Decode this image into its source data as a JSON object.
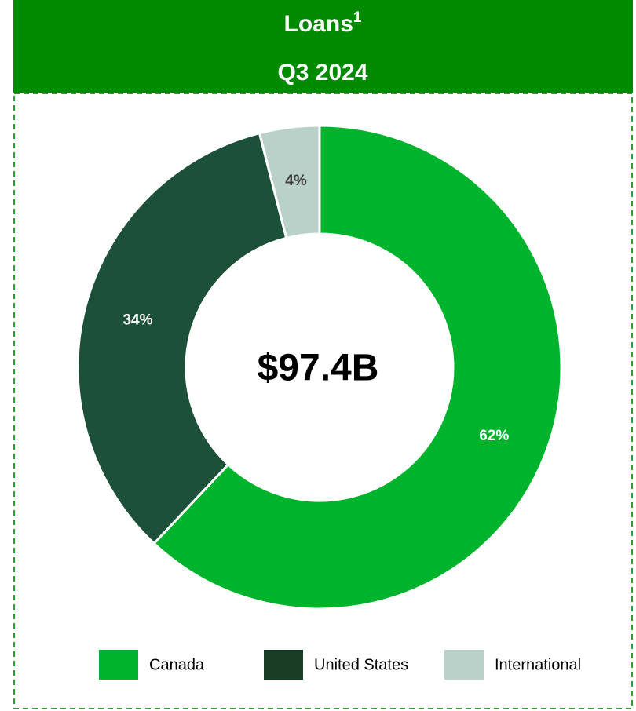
{
  "chart_data": {
    "type": "donut",
    "title": "Loans",
    "title_footnote": "1",
    "subtitle": "Q3 2024",
    "center_label": "$97.4B",
    "categories": [
      "Canada",
      "United States",
      "International"
    ],
    "values": [
      62,
      34,
      4
    ],
    "value_labels": [
      "62%",
      "34%",
      "4%"
    ],
    "colors": [
      "#00b32c",
      "#1d5038",
      "#b9d1c9"
    ],
    "legend_colors": [
      "#00b32c",
      "#1a3d26",
      "#b9d1c9"
    ],
    "label_colors": [
      "#ffffff",
      "#ffffff",
      "#404040"
    ],
    "legend": "bottom"
  }
}
